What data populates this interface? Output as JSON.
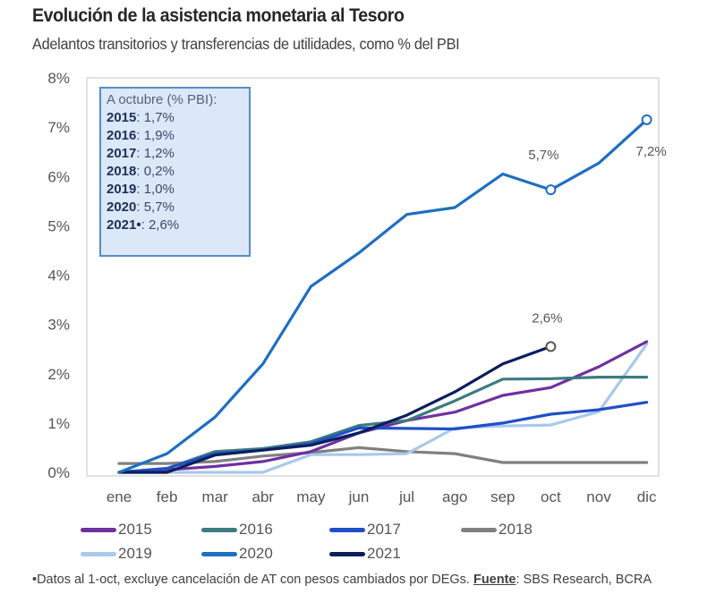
{
  "header": {
    "title": "Evolución de la asistencia monetaria al Tesoro",
    "subtitle": "Adelantos transitorios y transferencias de utilidades, como % del PBI"
  },
  "infobox": {
    "heading": "A octubre (% PBI):",
    "rows": [
      {
        "year": "2015",
        "value": ": 1,7%"
      },
      {
        "year": "2016",
        "value": ": 1,9%"
      },
      {
        "year": "2017",
        "value": ": 1,2%"
      },
      {
        "year": "2018",
        "value": ": 0,2%"
      },
      {
        "year": "2019",
        "value": ": 1,0%"
      },
      {
        "year": "2020",
        "value": ": 5,7%"
      },
      {
        "year": "2021•",
        "value": ": 2,6%"
      }
    ]
  },
  "footnote": {
    "text": "•Datos al 1-oct, excluye cancelación de AT con pesos cambiados por DEGs. ",
    "source_label": "Fuente",
    "source_text": ": SBS Research, BCRA"
  },
  "chart_data": {
    "type": "line",
    "title": "Evolución de la asistencia monetaria al Tesoro",
    "subtitle": "Adelantos transitorios y transferencias de utilidades, como % del PBI",
    "xlabel": "",
    "ylabel": "% del PBI",
    "categories": [
      "ene",
      "feb",
      "mar",
      "abr",
      "may",
      "jun",
      "jul",
      "ago",
      "sep",
      "oct",
      "nov",
      "dic"
    ],
    "ylim": [
      0,
      8
    ],
    "yticks": [
      0,
      1,
      2,
      3,
      4,
      5,
      6,
      7,
      8
    ],
    "ytick_labels": [
      "0%",
      "1%",
      "2%",
      "3%",
      "4%",
      "5%",
      "6%",
      "7%",
      "8%"
    ],
    "grid": false,
    "legend_position": "bottom",
    "series": [
      {
        "name": "2015",
        "color": "#7030a0",
        "values": [
          0.0,
          0.05,
          0.12,
          0.22,
          0.42,
          0.8,
          1.05,
          1.22,
          1.56,
          1.72,
          2.14,
          2.65
        ]
      },
      {
        "name": "2016",
        "color": "#3d7b80",
        "values": [
          0.0,
          0.08,
          0.42,
          0.48,
          0.62,
          0.95,
          1.05,
          1.45,
          1.89,
          1.9,
          1.93,
          1.93
        ]
      },
      {
        "name": "2017",
        "color": "#1f4fc8",
        "values": [
          0.0,
          0.08,
          0.38,
          0.45,
          0.58,
          0.9,
          0.89,
          0.88,
          1.0,
          1.18,
          1.27,
          1.42
        ]
      },
      {
        "name": "2018",
        "color": "#808080",
        "values": [
          0.18,
          0.18,
          0.22,
          0.33,
          0.4,
          0.5,
          0.42,
          0.38,
          0.2,
          0.2,
          0.2,
          0.2
        ]
      },
      {
        "name": "2019",
        "color": "#a9c8ec",
        "values": [
          0.0,
          0.0,
          0.0,
          0.0,
          0.36,
          0.36,
          0.38,
          0.9,
          0.94,
          0.96,
          1.23,
          2.6
        ]
      },
      {
        "name": "2020",
        "color": "#1e6fc0",
        "values": [
          0.0,
          0.38,
          1.12,
          2.2,
          3.77,
          4.45,
          5.23,
          5.37,
          6.05,
          5.73,
          6.27,
          7.15
        ]
      },
      {
        "name": "2021",
        "color": "#0b1e5c",
        "values": [
          0.0,
          0.0,
          0.35,
          0.45,
          0.55,
          0.8,
          1.16,
          1.63,
          2.2,
          2.55,
          null,
          null
        ]
      }
    ],
    "annotations": [
      {
        "series": "2020",
        "category": "oct",
        "label": "5,7%",
        "marker": "open-circle"
      },
      {
        "series": "2020",
        "category": "dic",
        "label": "7,2%",
        "marker": "open-circle"
      },
      {
        "series": "2021",
        "category": "oct",
        "label": "2,6%",
        "marker": "open-circle"
      }
    ]
  }
}
